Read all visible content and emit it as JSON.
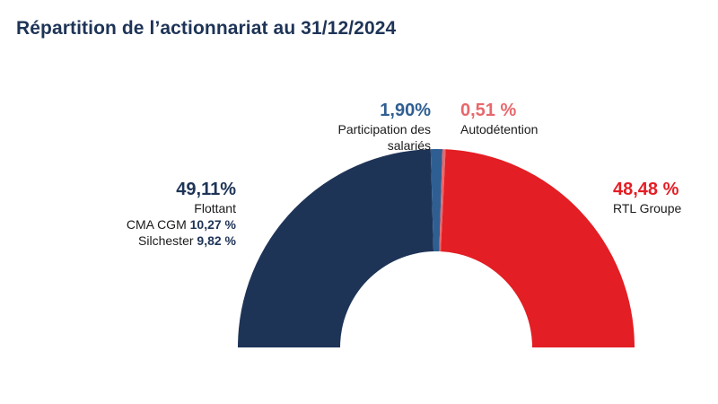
{
  "title": "Répartition de l’actionnariat au 31/12/2024",
  "colors": {
    "navy": "#1e3457",
    "blue": "#2f5f92",
    "light_red": "#e7686c",
    "red": "#e31e24",
    "title": "#1e3457"
  },
  "labels": {
    "flottant": {
      "pct": "49,11%",
      "name": "Flottant",
      "sub1_name": "CMA CGM",
      "sub1_value": "10,27 %",
      "sub2_name": "Silchester",
      "sub2_value": "9,82 %"
    },
    "participation": {
      "pct": "1,90%",
      "name_line1": "Participation des",
      "name_line2": "salariés"
    },
    "autodetention": {
      "pct": "0,51 %",
      "name": "Autodétention"
    },
    "rtl": {
      "pct": "48,48 %",
      "name": "RTL Groupe"
    }
  },
  "chart_data": {
    "type": "pie",
    "variant": "half-donut",
    "title": "Répartition de l’actionnariat au 31/12/2024",
    "slices": [
      {
        "label": "Flottant",
        "value": 49.11,
        "color": "#1e3457"
      },
      {
        "label": "Participation des salariés",
        "value": 1.9,
        "color": "#2f5f92"
      },
      {
        "label": "Autodétention",
        "value": 0.51,
        "color": "#e7686c"
      },
      {
        "label": "RTL Groupe",
        "value": 48.48,
        "color": "#e31e24"
      }
    ],
    "sub_breakdown": [
      {
        "label": "CMA CGM",
        "value": 10.27
      },
      {
        "label": "Silchester",
        "value": 9.82
      }
    ]
  }
}
